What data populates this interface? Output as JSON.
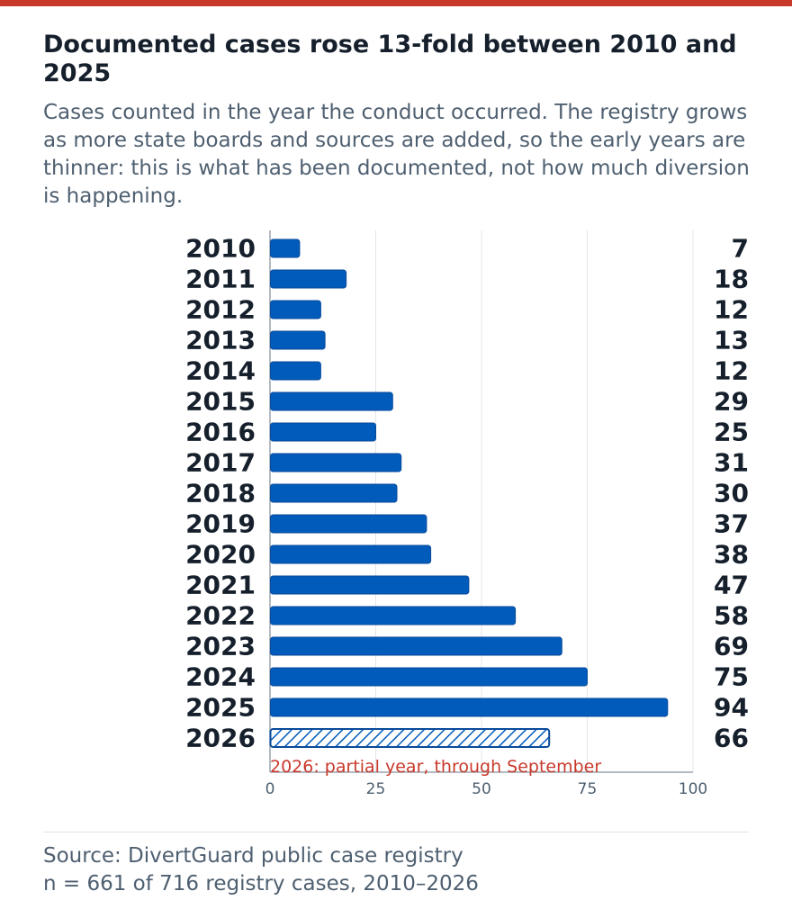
{
  "colors": {
    "accent": "#c8392b",
    "bar": "#005bbb",
    "bar_outline": "#0a4a9a",
    "text_dark": "#16202c",
    "text_muted": "#4e5f70",
    "grid": "#e2e5e8",
    "axis": "#9aa4ad"
  },
  "header": {
    "title": "Documented cases rose 13-fold between 2010 and 2025",
    "subtitle": "Cases counted in the year the conduct occurred. The registry grows as more state boards and sources are added, so the early years are thinner: this is what has been documented, not how much diversion is happening."
  },
  "chart_data": {
    "type": "bar",
    "orientation": "horizontal",
    "categories": [
      "2010",
      "2011",
      "2012",
      "2013",
      "2014",
      "2015",
      "2016",
      "2017",
      "2018",
      "2019",
      "2020",
      "2021",
      "2022",
      "2023",
      "2024",
      "2025",
      "2026"
    ],
    "values": [
      7,
      18,
      12,
      13,
      12,
      29,
      25,
      31,
      30,
      37,
      38,
      47,
      58,
      69,
      75,
      94,
      66
    ],
    "partial": [
      false,
      false,
      false,
      false,
      false,
      false,
      false,
      false,
      false,
      false,
      false,
      false,
      false,
      false,
      false,
      false,
      true
    ],
    "xlim": [
      0,
      100
    ],
    "xticks": [
      0,
      25,
      50,
      75,
      100
    ],
    "grid": true,
    "annotation": "2026: partial year, through September"
  },
  "footer": {
    "source": "Source: DivertGuard public case registry",
    "note": "n = 661 of 716 registry cases, 2010–2026"
  }
}
